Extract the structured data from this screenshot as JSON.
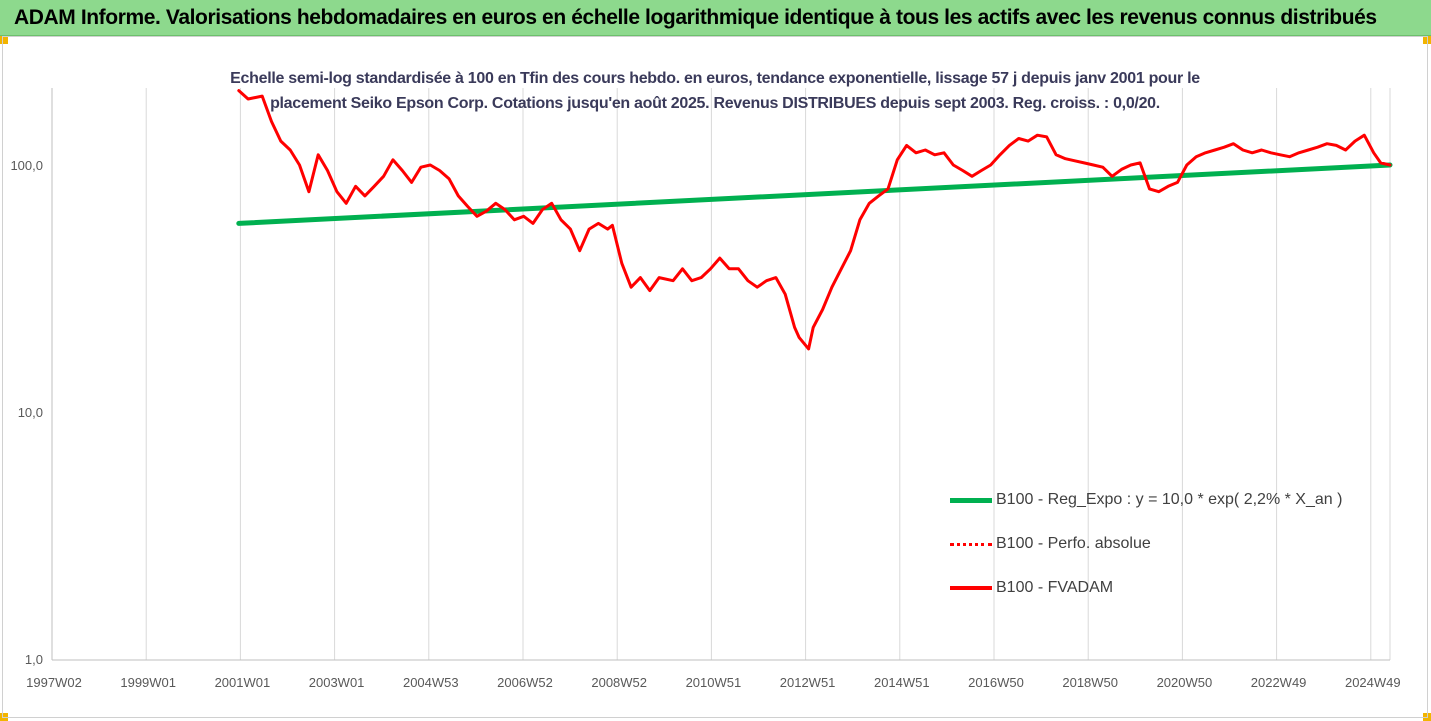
{
  "banner": {
    "title": "ADAM Informe. Valorisations hebdomadaires en euros en échelle logarithmique identique à tous les actifs avec les revenus connus distribués"
  },
  "chart_data": {
    "type": "line",
    "title": "",
    "subtitle_line1": "Echelle semi-log standardisée à 100 en Tfin des cours hebdo. en euros, tendance exponentielle, lissage 57 j depuis janv 2001 pour le",
    "subtitle_line2": "placement Seiko Epson Corp. Cotations jusqu'en août 2025. Revenus DISTRIBUES depuis sept 2003. Reg. croiss. : 0,0/20.",
    "y_scale": "log",
    "ylim": [
      1,
      200
    ],
    "y_ticks": [
      {
        "value": 1,
        "label": "1,0"
      },
      {
        "value": 10,
        "label": "10,0"
      },
      {
        "value": 100,
        "label": "100,0"
      }
    ],
    "x_ticks": [
      "1997W02",
      "1999W01",
      "2001W01",
      "2003W01",
      "2004W53",
      "2006W52",
      "2008W52",
      "2010W51",
      "2012W51",
      "2014W51",
      "2016W50",
      "2018W50",
      "2020W50",
      "2022W49",
      "2024W49"
    ],
    "x_range": [
      1997.0,
      2025.65
    ],
    "grid": "vertical",
    "legend_placement": "right",
    "series": [
      {
        "name": "B100 - Reg_Expo : y = 10,0 * exp( 2,2% *  X_an )",
        "color": "#00b050",
        "style": "solid",
        "points": [
          [
            2001.0,
            58
          ],
          [
            2025.65,
            100
          ]
        ]
      },
      {
        "name": "B100 - Perfo. absolue",
        "color": "#ff0000",
        "style": "dotted",
        "points": []
      },
      {
        "name": "B100 - FVADAM",
        "color": "#ff0000",
        "style": "solid",
        "points": [
          [
            2001.0,
            200
          ],
          [
            2001.2,
            185
          ],
          [
            2001.5,
            190
          ],
          [
            2001.7,
            150
          ],
          [
            2001.9,
            125
          ],
          [
            2002.1,
            115
          ],
          [
            2002.3,
            100
          ],
          [
            2002.5,
            78
          ],
          [
            2002.7,
            110
          ],
          [
            2002.9,
            95
          ],
          [
            2003.1,
            78
          ],
          [
            2003.3,
            70
          ],
          [
            2003.5,
            82
          ],
          [
            2003.7,
            75
          ],
          [
            2003.9,
            82
          ],
          [
            2004.1,
            90
          ],
          [
            2004.3,
            105
          ],
          [
            2004.5,
            95
          ],
          [
            2004.7,
            85
          ],
          [
            2004.9,
            98
          ],
          [
            2005.1,
            100
          ],
          [
            2005.3,
            95
          ],
          [
            2005.5,
            88
          ],
          [
            2005.7,
            75
          ],
          [
            2005.9,
            68
          ],
          [
            2006.1,
            62
          ],
          [
            2006.3,
            65
          ],
          [
            2006.5,
            70
          ],
          [
            2006.7,
            66
          ],
          [
            2006.9,
            60
          ],
          [
            2007.1,
            62
          ],
          [
            2007.3,
            58
          ],
          [
            2007.5,
            66
          ],
          [
            2007.7,
            70
          ],
          [
            2007.9,
            60
          ],
          [
            2008.1,
            55
          ],
          [
            2008.3,
            45
          ],
          [
            2008.5,
            55
          ],
          [
            2008.7,
            58
          ],
          [
            2008.9,
            55
          ],
          [
            2009.0,
            57
          ],
          [
            2009.2,
            40
          ],
          [
            2009.4,
            32
          ],
          [
            2009.6,
            35
          ],
          [
            2009.8,
            31
          ],
          [
            2010.0,
            35
          ],
          [
            2010.3,
            34
          ],
          [
            2010.5,
            38
          ],
          [
            2010.7,
            34
          ],
          [
            2010.9,
            35
          ],
          [
            2011.1,
            38
          ],
          [
            2011.3,
            42
          ],
          [
            2011.5,
            38
          ],
          [
            2011.7,
            38
          ],
          [
            2011.9,
            34
          ],
          [
            2012.1,
            32
          ],
          [
            2012.3,
            34
          ],
          [
            2012.5,
            35
          ],
          [
            2012.7,
            30
          ],
          [
            2012.9,
            22
          ],
          [
            2013.0,
            20
          ],
          [
            2013.2,
            18
          ],
          [
            2013.3,
            22
          ],
          [
            2013.5,
            26
          ],
          [
            2013.7,
            32
          ],
          [
            2013.9,
            38
          ],
          [
            2014.1,
            45
          ],
          [
            2014.3,
            60
          ],
          [
            2014.5,
            70
          ],
          [
            2014.7,
            75
          ],
          [
            2014.9,
            80
          ],
          [
            2015.1,
            105
          ],
          [
            2015.3,
            120
          ],
          [
            2015.5,
            112
          ],
          [
            2015.7,
            115
          ],
          [
            2015.9,
            110
          ],
          [
            2016.1,
            112
          ],
          [
            2016.3,
            100
          ],
          [
            2016.5,
            95
          ],
          [
            2016.7,
            90
          ],
          [
            2016.9,
            95
          ],
          [
            2017.1,
            100
          ],
          [
            2017.3,
            110
          ],
          [
            2017.5,
            120
          ],
          [
            2017.7,
            128
          ],
          [
            2017.9,
            125
          ],
          [
            2018.1,
            132
          ],
          [
            2018.3,
            130
          ],
          [
            2018.5,
            110
          ],
          [
            2018.7,
            106
          ],
          [
            2018.9,
            104
          ],
          [
            2019.1,
            102
          ],
          [
            2019.3,
            100
          ],
          [
            2019.5,
            98
          ],
          [
            2019.7,
            90
          ],
          [
            2019.9,
            96
          ],
          [
            2020.1,
            100
          ],
          [
            2020.3,
            102
          ],
          [
            2020.5,
            80
          ],
          [
            2020.7,
            78
          ],
          [
            2020.9,
            82
          ],
          [
            2021.1,
            85
          ],
          [
            2021.3,
            100
          ],
          [
            2021.5,
            108
          ],
          [
            2021.7,
            112
          ],
          [
            2021.9,
            115
          ],
          [
            2022.1,
            118
          ],
          [
            2022.3,
            122
          ],
          [
            2022.5,
            115
          ],
          [
            2022.7,
            112
          ],
          [
            2022.9,
            115
          ],
          [
            2023.1,
            112
          ],
          [
            2023.3,
            110
          ],
          [
            2023.5,
            108
          ],
          [
            2023.7,
            112
          ],
          [
            2023.9,
            115
          ],
          [
            2024.1,
            118
          ],
          [
            2024.3,
            122
          ],
          [
            2024.5,
            120
          ],
          [
            2024.7,
            115
          ],
          [
            2024.9,
            125
          ],
          [
            2025.1,
            132
          ],
          [
            2025.3,
            112
          ],
          [
            2025.45,
            102
          ],
          [
            2025.65,
            100
          ]
        ]
      }
    ]
  }
}
